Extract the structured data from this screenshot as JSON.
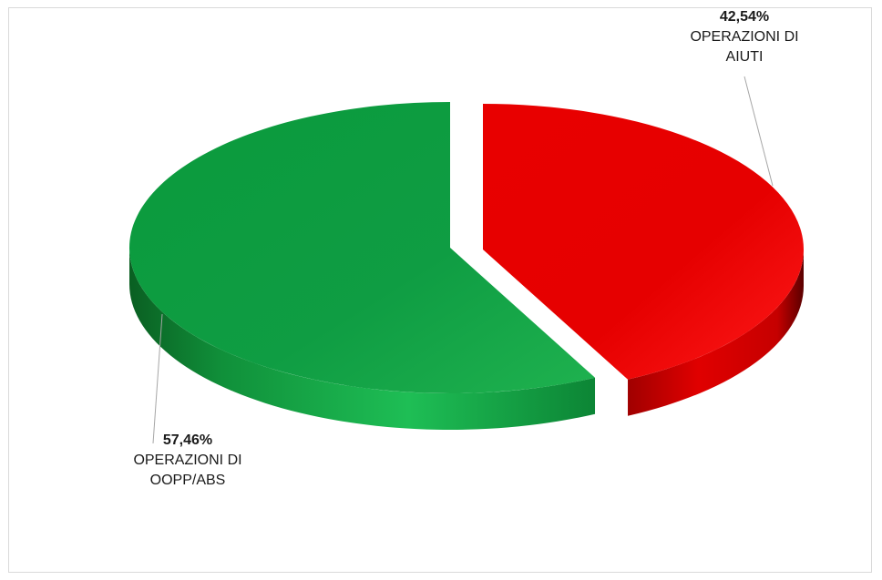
{
  "chart_data": {
    "type": "pie",
    "style": "3d-exploded",
    "slices": [
      {
        "label": "OPERAZIONI DI AIUTI",
        "value": 42.54,
        "value_label": "42,54%",
        "color": "#e00000"
      },
      {
        "label": "OPERAZIONI DI OOPP/ABS",
        "value": 57.46,
        "value_label": "57,46%",
        "color": "#0a9a3c"
      }
    ],
    "legend": "none"
  }
}
